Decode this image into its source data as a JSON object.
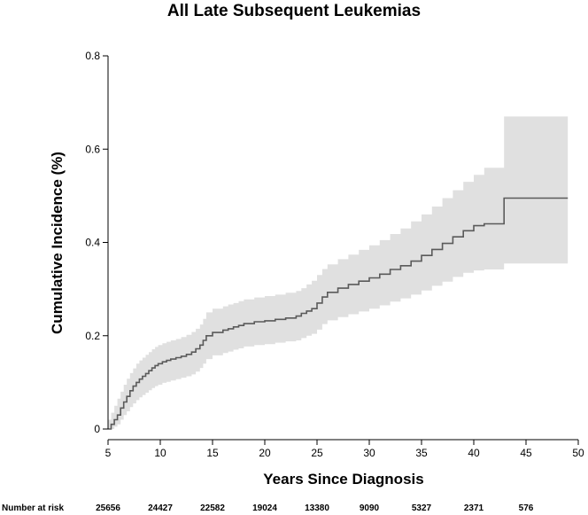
{
  "chart_data": {
    "type": "line",
    "title": "All Late Subsequent Leukemias",
    "xlabel": "Years Since Diagnosis",
    "ylabel": "Cumulative Incidence (%)",
    "xlim": [
      5,
      50
    ],
    "ylim": [
      0,
      0.8
    ],
    "x_ticks": [
      5,
      10,
      15,
      20,
      25,
      30,
      35,
      40,
      45,
      50
    ],
    "y_ticks": [
      0,
      0.2,
      0.4,
      0.6,
      0.8
    ],
    "x_tick_labels": [
      "5",
      "10",
      "15",
      "20",
      "25",
      "30",
      "35",
      "40",
      "45",
      "50"
    ],
    "y_tick_labels": [
      "0",
      "0.2",
      "0.4",
      "0.6",
      "0.8"
    ],
    "grid": false,
    "line_color": "#5a5a5a",
    "band_color": "#e0e0e0",
    "series": [
      {
        "x": [
          5.0,
          5.3,
          5.6,
          5.9,
          6.2,
          6.5,
          6.8,
          7.1,
          7.4,
          7.7,
          8.0,
          8.3,
          8.6,
          8.9,
          9.2,
          9.5,
          9.8,
          10.2,
          10.6,
          11.0,
          11.5,
          12.0,
          12.5,
          13.0,
          13.4,
          13.8,
          14.1,
          14.4,
          15.0,
          16.0,
          16.5,
          17.0,
          17.5,
          18.0,
          19.0,
          20.0,
          21.0,
          22.0,
          23.0,
          23.5,
          24.0,
          24.5,
          25.0,
          25.5,
          26.0,
          27.0,
          28.0,
          29.0,
          30.0,
          31.0,
          32.0,
          33.0,
          34.0,
          35.0,
          36.0,
          37.0,
          38.0,
          39.0,
          40.0,
          41.0,
          42.9,
          49.0
        ],
        "y": [
          0.0,
          0.01,
          0.02,
          0.03,
          0.045,
          0.058,
          0.07,
          0.082,
          0.092,
          0.1,
          0.107,
          0.113,
          0.119,
          0.125,
          0.131,
          0.136,
          0.14,
          0.144,
          0.147,
          0.15,
          0.153,
          0.156,
          0.16,
          0.165,
          0.172,
          0.18,
          0.19,
          0.2,
          0.207,
          0.212,
          0.215,
          0.219,
          0.222,
          0.226,
          0.23,
          0.232,
          0.235,
          0.238,
          0.242,
          0.248,
          0.253,
          0.258,
          0.27,
          0.283,
          0.293,
          0.302,
          0.31,
          0.317,
          0.324,
          0.332,
          0.342,
          0.35,
          0.36,
          0.372,
          0.385,
          0.398,
          0.412,
          0.425,
          0.436,
          0.44,
          0.495,
          0.495
        ],
        "lower": [
          0.0,
          0.0,
          0.005,
          0.01,
          0.02,
          0.03,
          0.038,
          0.047,
          0.055,
          0.062,
          0.068,
          0.073,
          0.078,
          0.083,
          0.088,
          0.092,
          0.095,
          0.099,
          0.101,
          0.104,
          0.107,
          0.11,
          0.113,
          0.117,
          0.123,
          0.131,
          0.14,
          0.15,
          0.158,
          0.163,
          0.166,
          0.17,
          0.173,
          0.177,
          0.18,
          0.182,
          0.185,
          0.188,
          0.19,
          0.195,
          0.2,
          0.204,
          0.213,
          0.225,
          0.233,
          0.24,
          0.246,
          0.252,
          0.258,
          0.265,
          0.273,
          0.28,
          0.288,
          0.297,
          0.307,
          0.316,
          0.326,
          0.335,
          0.34,
          0.342,
          0.355,
          0.355
        ],
        "upper": [
          0.02,
          0.035,
          0.05,
          0.065,
          0.08,
          0.095,
          0.108,
          0.12,
          0.13,
          0.14,
          0.147,
          0.153,
          0.159,
          0.165,
          0.171,
          0.176,
          0.18,
          0.184,
          0.187,
          0.19,
          0.193,
          0.197,
          0.202,
          0.208,
          0.215,
          0.224,
          0.236,
          0.25,
          0.258,
          0.263,
          0.267,
          0.27,
          0.274,
          0.278,
          0.282,
          0.285,
          0.288,
          0.292,
          0.296,
          0.302,
          0.31,
          0.318,
          0.33,
          0.343,
          0.353,
          0.364,
          0.374,
          0.384,
          0.394,
          0.405,
          0.418,
          0.43,
          0.445,
          0.46,
          0.477,
          0.495,
          0.512,
          0.53,
          0.545,
          0.56,
          0.67,
          0.67
        ]
      }
    ],
    "number_at_risk": {
      "label": "Number at risk",
      "x": [
        5,
        10,
        15,
        20,
        25,
        30,
        35,
        40,
        45
      ],
      "values": [
        "25656",
        "24427",
        "22582",
        "19024",
        "13380",
        "9090",
        "5327",
        "2371",
        "576"
      ]
    }
  }
}
